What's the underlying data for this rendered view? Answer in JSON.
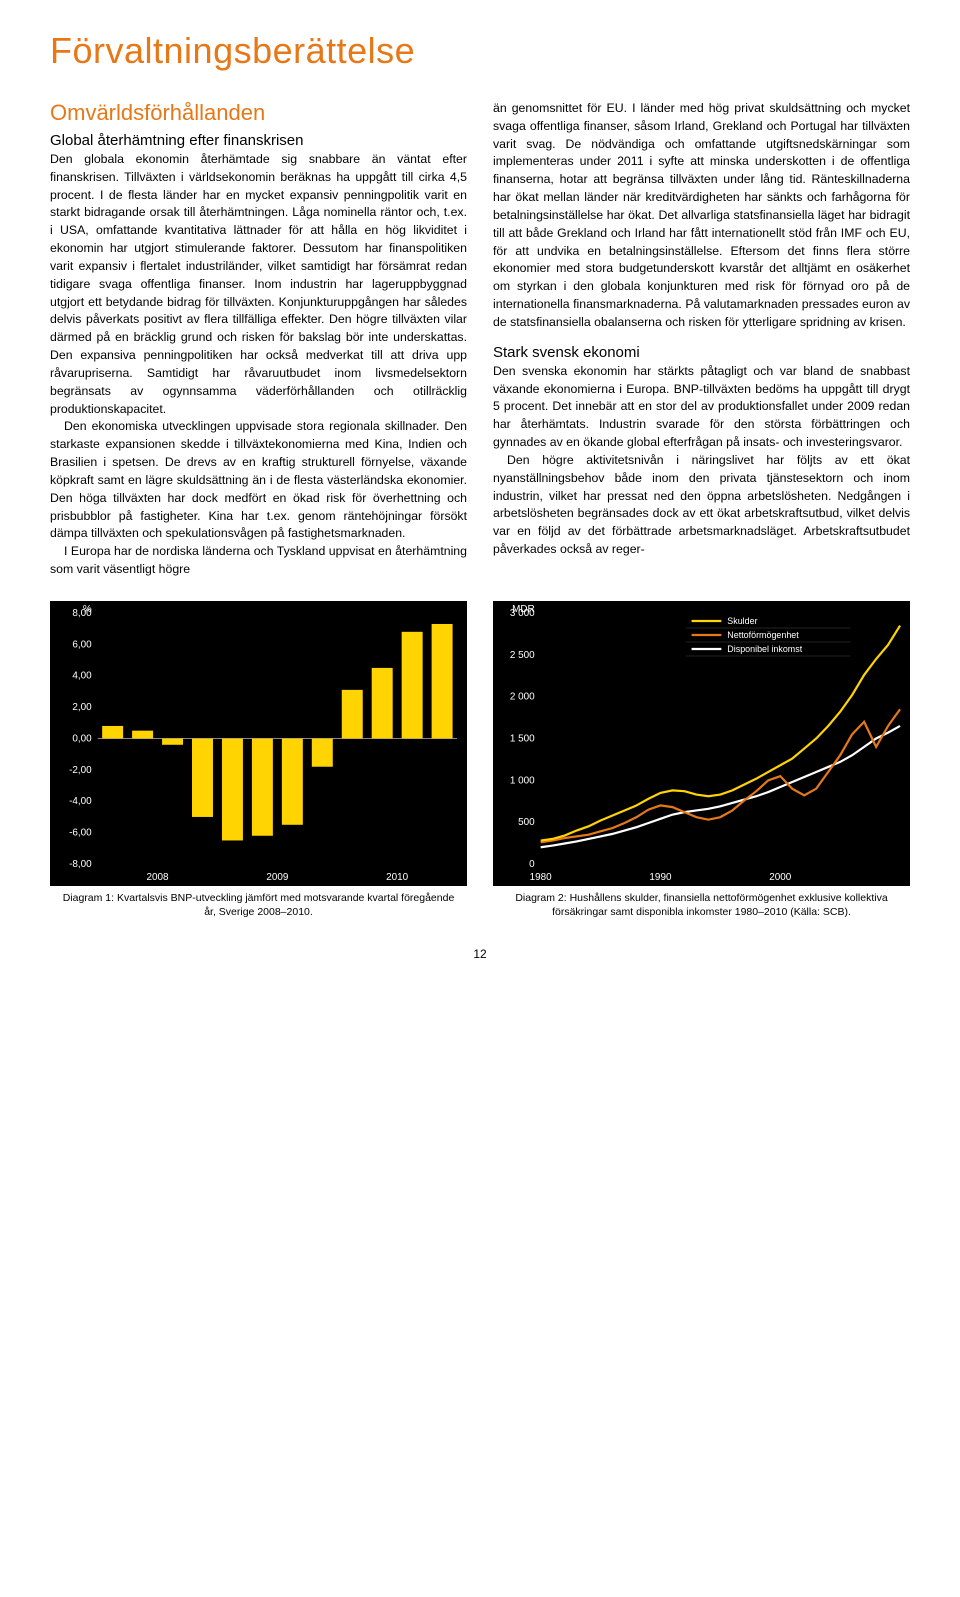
{
  "page_title": "Förvaltningsberättelse",
  "page_number": "12",
  "left": {
    "h2": "Omvärldsförhållanden",
    "h3": "Global återhämtning efter finanskrisen",
    "p1": "Den globala ekonomin återhämtade sig snabbare än väntat efter finanskrisen. Tillväxten i världsekonomin beräknas ha uppgått till cirka 4,5 procent. I de flesta länder har en mycket expansiv penningpolitik varit en starkt bidragande orsak till återhämtningen. Låga nominella räntor och, t.ex. i USA, omfattande kvantitativa lättnader för att hålla en hög likviditet i ekonomin har utgjort stimulerande faktorer. Dessutom har finanspolitiken varit expansiv i flertalet industriländer, vilket samtidigt har försämrat redan tidigare svaga offentliga finanser. Inom industrin har lageruppbyggnad utgjort ett betydande bidrag för tillväxten. Konjunkturuppgången har således delvis påverkats positivt av flera tillfälliga effekter. Den högre tillväxten vilar därmed på en bräcklig grund och risken för bakslag bör inte underskattas. Den expansiva penningpolitiken har också medverkat till att driva upp råvarupriserna. Samtidigt har råvaruutbudet inom livsmedelsektorn begränsats av ogynnsamma väderförhållanden och otillräcklig produktionskapacitet.",
    "p2": "Den ekonomiska utvecklingen uppvisade stora regionala skillnader. Den starkaste expansionen skedde i tillväxtekonomierna med Kina, Indien och Brasilien i spetsen. De drevs av en kraftig strukturell förnyelse, växande köpkraft samt en lägre skuldsättning än i de flesta västerländska ekonomier. Den höga tillväxten har dock medfört en ökad risk för överhettning och prisbubblor på fastigheter. Kina har t.ex. genom räntehöjningar försökt dämpa tillväxten och spekulationsvågen på fastighetsmarknaden.",
    "p3": "I Europa har de nordiska länderna och Tyskland uppvisat en återhämtning som varit väsentligt högre"
  },
  "right": {
    "p1": "än genomsnittet för EU. I länder med hög privat skuldsättning och mycket svaga offentliga finanser, såsom Irland, Grekland och Portugal har tillväxten varit svag. De nödvändiga och omfattande utgiftsnedskärningar som implementeras under 2011 i syfte att minska underskotten i de offentliga finanserna, hotar att begränsa tillväxten under lång tid. Ränteskillnaderna har ökat mellan länder när kreditvärdigheten har sänkts och farhågorna för betalningsinställelse har ökat. Det allvarliga statsfinansiella läget har bidragit till att både Grekland och Irland har fått internationellt stöd från IMF och EU, för att undvika en betalningsinställelse. Eftersom det finns flera större ekonomier med stora budgetunderskott kvarstår det alltjämt en osäkerhet om styrkan i den globala konjunkturen med risk för förnyad oro på de internationella finansmarknaderna. På valutamarknaden pressades euron av de statsfinansiella obalanserna och risken för ytterligare spridning av krisen.",
    "h3": "Stark svensk ekonomi",
    "p2": "Den svenska ekonomin har stärkts påtagligt och var bland de snabbast växande ekonomierna i Europa. BNP-tillväxten bedöms ha uppgått till drygt 5 procent. Det innebär att en stor del av produktionsfallet under 2009 redan har återhämtats. Industrin svarade för den största förbättringen och gynnades av en ökande global efterfrågan på insats- och investeringsvaror.",
    "p3": "Den högre aktivitetsnivån i näringslivet har följts av ett ökat nyanställningsbehov både inom den privata tjänstesektorn och inom industrin, vilket har pressat ned den öppna arbetslösheten. Nedgången i arbetslösheten begränsades dock av ett ökat arbetskraftsutbud, vilket delvis var en följd av det förbättrade arbetsmarknadsläget. Arbetskraftsutbudet påverkades också av reger-"
  },
  "chart1": {
    "type": "bar",
    "y_unit": "%",
    "ylim": [
      -8,
      8
    ],
    "ytick_step": 2,
    "yticks": [
      "8,00",
      "6,00",
      "4,00",
      "2,00",
      "0,00",
      "-2,00",
      "-4,00",
      "-6,00",
      "-8,00"
    ],
    "xticks": [
      "2008",
      "2009",
      "2010"
    ],
    "values": [
      0.8,
      0.5,
      -0.4,
      -5.0,
      -6.5,
      -6.2,
      -5.5,
      -1.8,
      3.1,
      4.5,
      6.8,
      7.3
    ],
    "bar_color": "#ffd400",
    "background": "#000000",
    "caption": "Diagram 1: Kvartalsvis BNP-utveckling jämfört med motsvarande kvartal föregående år, Sverige 2008–2010."
  },
  "chart2": {
    "type": "line",
    "y_unit": "MDR",
    "ylim": [
      0,
      3000
    ],
    "ytick_step": 500,
    "yticks": [
      "3 000",
      "2 500",
      "2 000",
      "1 500",
      "1 000",
      "500",
      "0"
    ],
    "xticks": [
      "1980",
      "1990",
      "2000"
    ],
    "xrange": [
      1980,
      2010
    ],
    "legend": [
      {
        "label": "Skulder",
        "color": "#ffd400"
      },
      {
        "label": "Nettoförmögenhet",
        "color": "#e77817"
      },
      {
        "label": "Disponibel inkomst",
        "color": "#ffffff"
      }
    ],
    "series": {
      "skulder": [
        280,
        300,
        340,
        400,
        450,
        520,
        580,
        640,
        700,
        780,
        850,
        880,
        870,
        830,
        810,
        830,
        880,
        950,
        1020,
        1100,
        1180,
        1260,
        1380,
        1500,
        1650,
        1820,
        2020,
        2260,
        2450,
        2620,
        2850
      ],
      "netto": [
        260,
        280,
        310,
        330,
        350,
        390,
        430,
        490,
        560,
        650,
        700,
        680,
        620,
        560,
        530,
        560,
        640,
        760,
        870,
        1000,
        1050,
        900,
        820,
        900,
        1100,
        1300,
        1550,
        1700,
        1400,
        1650,
        1850
      ],
      "disp": [
        200,
        220,
        245,
        270,
        300,
        330,
        360,
        400,
        440,
        490,
        540,
        590,
        620,
        640,
        660,
        690,
        730,
        770,
        810,
        860,
        920,
        980,
        1040,
        1100,
        1160,
        1220,
        1300,
        1400,
        1500,
        1570,
        1650
      ]
    },
    "background": "#000000",
    "caption": "Diagram 2: Hushållens skulder, finansiella nettoförmögenhet exklusive kollektiva försäkringar samt disponibla inkomster 1980–2010 (Källa: SCB)."
  }
}
